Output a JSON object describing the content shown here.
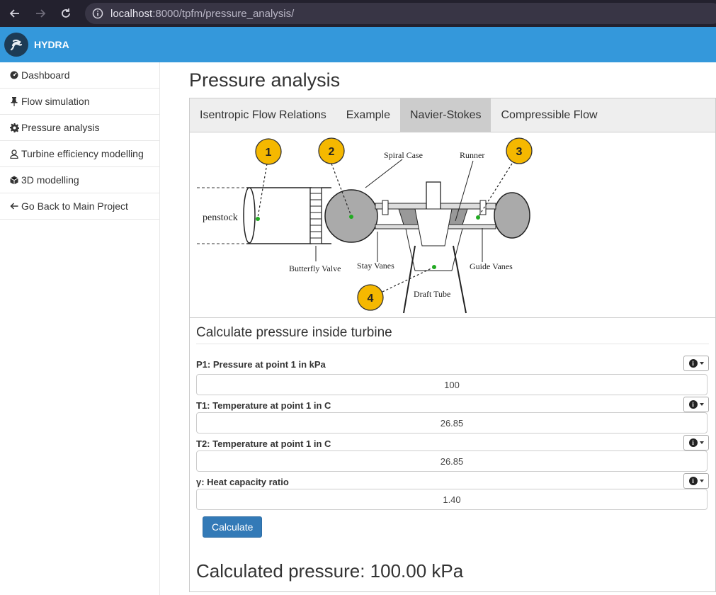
{
  "browser": {
    "url_host": "localhost",
    "url_path": ":8000/tpfm/pressure_analysis/",
    "icons": [
      "back-arrow-icon",
      "forward-arrow-icon",
      "reload-icon",
      "site-info-icon"
    ]
  },
  "header": {
    "brand": "HYDRA",
    "color": "#3498db"
  },
  "sidebar": {
    "items": [
      {
        "label": "Dashboard",
        "icon": "dashboard-icon"
      },
      {
        "label": "Flow simulation",
        "icon": "pin-icon"
      },
      {
        "label": "Pressure analysis",
        "icon": "gear-icon"
      },
      {
        "label": "Turbine efficiency modelling",
        "icon": "user-icon"
      },
      {
        "label": "3D modelling",
        "icon": "cube-icon"
      },
      {
        "label": "Go Back to Main Project",
        "icon": "arrow-left-icon"
      }
    ]
  },
  "main": {
    "title": "Pressure analysis",
    "tabs": [
      {
        "label": "Isentropic Flow Relations",
        "active": false
      },
      {
        "label": "Example",
        "active": false
      },
      {
        "label": "Navier-Stokes",
        "active": true
      },
      {
        "label": "Compressible Flow",
        "active": false
      }
    ],
    "diagram": {
      "labels": {
        "penstock": "penstock",
        "spiral_case": "Spiral Case",
        "runner": "Runner",
        "butterfly_valve": "Butterfly Valve",
        "stay_vanes": "Stay Vanes",
        "guide_vanes": "Guide Vanes",
        "draft_tube": "Draft Tube"
      },
      "markers": [
        "1",
        "2",
        "3",
        "4"
      ],
      "marker_color": "#f5b800",
      "point_color": "#22aa22"
    },
    "calc": {
      "title": "Calculate pressure inside turbine",
      "fields": [
        {
          "label": "P1: Pressure at point 1 in kPa",
          "value": "100"
        },
        {
          "label": "T1: Temperature at point 1 in C",
          "value": "26.85"
        },
        {
          "label": "T2: Temperature at point 1 in C",
          "value": "26.85"
        },
        {
          "label": "γ: Heat capacity ratio",
          "value": "1.40"
        }
      ],
      "button_label": "Calculate",
      "result": "Calculated pressure: 100.00 kPa"
    }
  }
}
